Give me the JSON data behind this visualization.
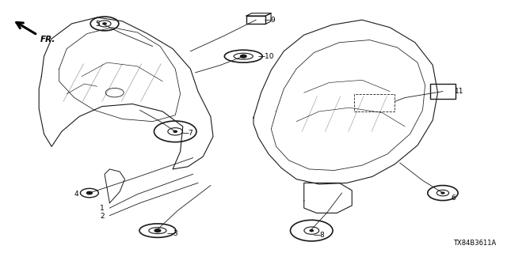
{
  "background_color": "#ffffff",
  "diagram_code": "TX84B3611A",
  "line_color": "#1a1a1a"
}
